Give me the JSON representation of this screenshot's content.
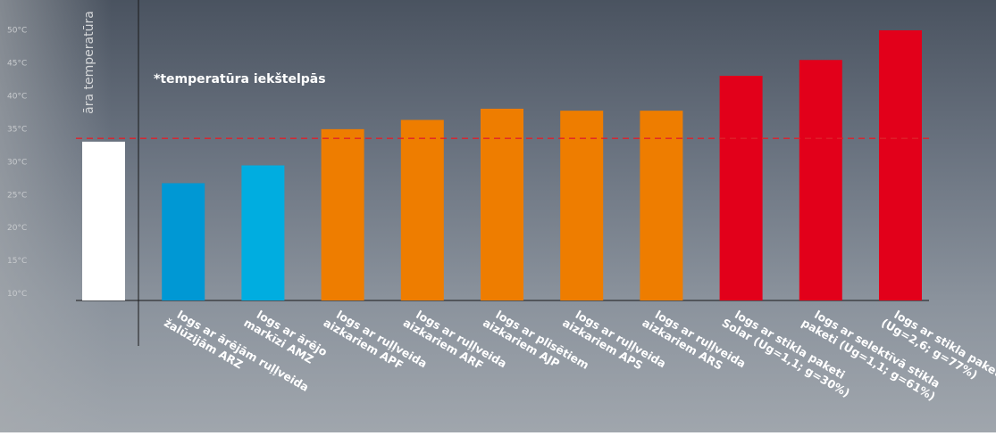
{
  "chart_data": {
    "type": "bar",
    "y_label": "āra temperatūra",
    "annotation": "*temperatūra iekštelpās",
    "reference_line": 33.6,
    "reference_color": "#e0202a",
    "categories": [
      null,
      [
        "logs ar ārējām ruļļveida",
        "žalūzijām ARZ"
      ],
      [
        "logs ar ārējo",
        "markīzi AMZ"
      ],
      [
        "logs ar ruļļveida",
        "aizkariem APF"
      ],
      [
        "logs ar ruļļveida",
        "aizkariem ARF"
      ],
      [
        "logs ar plisētiem",
        "aizkariem AJP"
      ],
      [
        "logs ar ruļļveida",
        "aizkariem APS"
      ],
      [
        "logs ar ruļļveida",
        "aizkariem ARS"
      ],
      [
        "logs ar stikla paketi",
        "Solar (Ug=1,1; g=30%)"
      ],
      [
        "logs ar selektīvā stikla",
        "paketi (Ug=1,1; g=61%)"
      ],
      [
        "logs ar stikla paketi",
        "(Ug=2,6; g=77%)"
      ]
    ],
    "values": [
      33.1,
      26.8,
      29.5,
      35.0,
      36.4,
      38.1,
      37.8,
      37.8,
      43.1,
      45.5,
      50.0
    ],
    "colors": [
      "#ffffff",
      "#0098d4",
      "#00ade0",
      "#ee7d00",
      "#ee7d00",
      "#ee7d00",
      "#ee7d00",
      "#ee7d00",
      "#e2001a",
      "#e2001a",
      "#e2001a"
    ],
    "ylim": [
      9,
      50
    ],
    "yticks": [
      {
        "value": 10,
        "label": "10°C"
      },
      {
        "value": 15,
        "label": "15°C"
      },
      {
        "value": 20,
        "label": "20°C"
      },
      {
        "value": 25,
        "label": "25°C"
      },
      {
        "value": 30,
        "label": "30°C"
      },
      {
        "value": 35,
        "label": "35°C"
      },
      {
        "value": 40,
        "label": "40°C"
      },
      {
        "value": 45,
        "label": "45°C"
      },
      {
        "value": 50,
        "label": "50°C"
      }
    ]
  }
}
